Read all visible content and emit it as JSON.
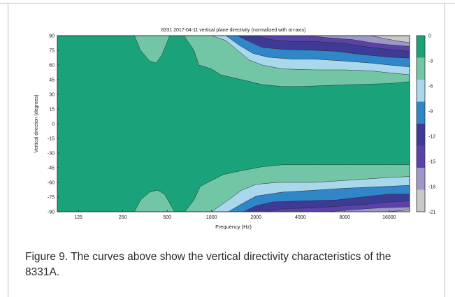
{
  "caption": "Figure 9. The curves above show the vertical directivity characteristics of the 8331A.",
  "chart_data": {
    "type": "contour",
    "title": "8331 2017-04-11 vertical plane directivity (normalized with on-axis)",
    "xlabel": "Frequency (Hz)",
    "ylabel": "Vertical direction (degrees)",
    "x_scale": "log",
    "xlim": [
      90,
      22000
    ],
    "ylim": [
      -90,
      90
    ],
    "x_ticks": [
      125,
      250,
      500,
      1000,
      2000,
      4000,
      8000,
      16000
    ],
    "x_tick_labels": [
      "125",
      "250",
      "500",
      "1000",
      "2000",
      "4000",
      "8000",
      "16000"
    ],
    "y_ticks": [
      90,
      75,
      60,
      45,
      30,
      15,
      0,
      -15,
      -30,
      -45,
      -60,
      -75,
      -90
    ],
    "y_tick_labels": [
      "90",
      "75",
      "60",
      "45",
      "30",
      "15",
      "0",
      "-15",
      "-30",
      "-45",
      "-60",
      "-75",
      "-90"
    ],
    "levels_db": [
      0,
      -3,
      -6,
      -9,
      -12,
      -15,
      -18,
      -21
    ],
    "colorbar_labels": [
      "0",
      "-3",
      "-6",
      "-9",
      "-12",
      "-15",
      "-18",
      "-21"
    ],
    "level_colors": [
      "#1aa37a",
      "#72c6a6",
      "#a9d7ec",
      "#2f86c9",
      "#3d3b95",
      "#5a42a8",
      "#9d98c8",
      "#c9c9c9"
    ],
    "contours_upper": [
      {
        "level": -3,
        "points": [
          [
            90,
            90
          ],
          [
            300,
            90
          ],
          [
            330,
            75
          ],
          [
            380,
            64
          ],
          [
            420,
            62
          ],
          [
            460,
            70
          ],
          [
            520,
            90
          ],
          [
            650,
            90
          ],
          [
            760,
            75
          ],
          [
            820,
            60
          ],
          [
            1000,
            56
          ],
          [
            1150,
            50
          ],
          [
            1600,
            45
          ],
          [
            2200,
            40
          ],
          [
            3000,
            38
          ],
          [
            4000,
            38
          ],
          [
            6000,
            39
          ],
          [
            9000,
            40
          ],
          [
            16000,
            41
          ],
          [
            22000,
            43
          ]
        ]
      },
      {
        "level": -6,
        "points": [
          [
            1000,
            90
          ],
          [
            1250,
            85
          ],
          [
            1500,
            75
          ],
          [
            1800,
            65
          ],
          [
            2200,
            60
          ],
          [
            3000,
            56
          ],
          [
            5000,
            55
          ],
          [
            8000,
            55
          ],
          [
            12000,
            54
          ],
          [
            16000,
            52
          ],
          [
            22000,
            50
          ]
        ]
      },
      {
        "level": -9,
        "points": [
          [
            1250,
            90
          ],
          [
            1550,
            80
          ],
          [
            1900,
            72
          ],
          [
            2400,
            68
          ],
          [
            3500,
            66
          ],
          [
            5000,
            66
          ],
          [
            8000,
            64
          ],
          [
            12000,
            62
          ],
          [
            16000,
            60
          ],
          [
            22000,
            58
          ]
        ]
      },
      {
        "level": -12,
        "points": [
          [
            1500,
            90
          ],
          [
            1800,
            84
          ],
          [
            2200,
            78
          ],
          [
            3000,
            76
          ],
          [
            5000,
            75
          ],
          [
            7000,
            74
          ],
          [
            10000,
            71
          ],
          [
            16000,
            68
          ],
          [
            22000,
            67
          ]
        ]
      },
      {
        "level": -15,
        "points": [
          [
            2000,
            90
          ],
          [
            2500,
            86
          ],
          [
            3500,
            84
          ],
          [
            5000,
            84
          ],
          [
            8000,
            82
          ],
          [
            12000,
            78
          ],
          [
            16000,
            76
          ],
          [
            22000,
            74
          ]
        ]
      },
      {
        "level": -18,
        "points": [
          [
            4500,
            90
          ],
          [
            6000,
            88
          ],
          [
            9000,
            86
          ],
          [
            13000,
            82
          ],
          [
            18000,
            80
          ],
          [
            22000,
            79
          ]
        ]
      },
      {
        "level": -21,
        "points": [
          [
            12000,
            90
          ],
          [
            15000,
            87
          ],
          [
            19000,
            84
          ],
          [
            22000,
            83
          ]
        ]
      }
    ],
    "contours_lower": [
      {
        "level": -3,
        "points": [
          [
            90,
            -90
          ],
          [
            300,
            -90
          ],
          [
            330,
            -78
          ],
          [
            380,
            -70
          ],
          [
            430,
            -68
          ],
          [
            480,
            -72
          ],
          [
            560,
            -90
          ],
          [
            660,
            -90
          ],
          [
            760,
            -78
          ],
          [
            840,
            -64
          ],
          [
            1000,
            -58
          ],
          [
            1200,
            -52
          ],
          [
            1600,
            -48
          ],
          [
            2200,
            -44
          ],
          [
            3000,
            -42
          ],
          [
            5000,
            -42
          ],
          [
            8000,
            -42
          ],
          [
            16000,
            -42
          ],
          [
            22000,
            -42
          ]
        ]
      },
      {
        "level": -6,
        "points": [
          [
            1000,
            -90
          ],
          [
            1300,
            -78
          ],
          [
            1600,
            -68
          ],
          [
            2000,
            -62
          ],
          [
            2800,
            -60
          ],
          [
            5000,
            -60
          ],
          [
            8000,
            -58
          ],
          [
            16000,
            -55
          ],
          [
            22000,
            -54
          ]
        ]
      },
      {
        "level": -9,
        "points": [
          [
            1300,
            -90
          ],
          [
            1600,
            -82
          ],
          [
            2000,
            -74
          ],
          [
            3000,
            -70
          ],
          [
            5000,
            -68
          ],
          [
            8000,
            -66
          ],
          [
            16000,
            -64
          ],
          [
            22000,
            -63
          ]
        ]
      },
      {
        "level": -12,
        "points": [
          [
            1650,
            -90
          ],
          [
            2000,
            -84
          ],
          [
            2600,
            -80
          ],
          [
            4000,
            -79
          ],
          [
            7000,
            -78
          ],
          [
            12000,
            -74
          ],
          [
            16000,
            -72
          ],
          [
            22000,
            -72
          ]
        ]
      },
      {
        "level": -15,
        "points": [
          [
            2300,
            -90
          ],
          [
            3000,
            -87
          ],
          [
            5000,
            -86
          ],
          [
            8000,
            -84
          ],
          [
            12000,
            -82
          ],
          [
            16000,
            -80
          ],
          [
            22000,
            -79
          ]
        ]
      },
      {
        "level": -18,
        "points": [
          [
            6000,
            -90
          ],
          [
            9000,
            -88
          ],
          [
            14000,
            -86
          ],
          [
            22000,
            -85
          ]
        ]
      },
      {
        "level": -21,
        "points": [
          [
            15000,
            -90
          ],
          [
            19000,
            -89
          ],
          [
            22000,
            -88
          ]
        ]
      }
    ]
  }
}
